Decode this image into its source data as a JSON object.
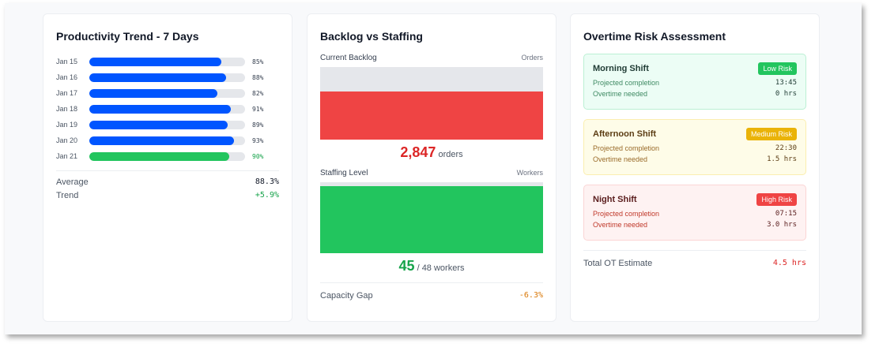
{
  "productivity": {
    "title": "Productivity Trend - 7 Days",
    "rows": [
      {
        "date": "Jan 15",
        "value": 85,
        "label": "85%",
        "color": "#0055ff"
      },
      {
        "date": "Jan 16",
        "value": 88,
        "label": "88%",
        "color": "#0055ff"
      },
      {
        "date": "Jan 17",
        "value": 82,
        "label": "82%",
        "color": "#0055ff"
      },
      {
        "date": "Jan 18",
        "value": 91,
        "label": "91%",
        "color": "#0055ff"
      },
      {
        "date": "Jan 19",
        "value": 89,
        "label": "89%",
        "color": "#0055ff"
      },
      {
        "date": "Jan 20",
        "value": 93,
        "label": "93%",
        "color": "#0055ff"
      },
      {
        "date": "Jan 21",
        "value": 90,
        "label": "90%",
        "color": "#22c55e"
      }
    ],
    "average_label": "Average",
    "average": "88.3%",
    "trend_label": "Trend",
    "trend": "+5.9%"
  },
  "backlog": {
    "title": "Backlog vs Staffing",
    "current_label": "Current Backlog",
    "current_unit": "Orders",
    "backlog_fill_percent": 66,
    "backlog_value": "2,847",
    "backlog_suffix": "orders",
    "staffing_label": "Staffing Level",
    "staffing_unit": "Workers",
    "staffing_fill_percent": 94,
    "staffing_value": "45",
    "staffing_suffix": "/ 48 workers",
    "gap_label": "Capacity Gap",
    "gap_value": "-6.3%"
  },
  "overtime": {
    "title": "Overtime Risk Assessment",
    "shifts": [
      {
        "name": "Morning Shift",
        "badge": "Low Risk",
        "completion_label": "Projected completion",
        "completion": "13:45",
        "ot_label": "Overtime needed",
        "ot": "0 hrs"
      },
      {
        "name": "Afternoon Shift",
        "badge": "Medium Risk",
        "completion_label": "Projected completion",
        "completion": "22:30",
        "ot_label": "Overtime needed",
        "ot": "1.5 hrs"
      },
      {
        "name": "Night Shift",
        "badge": "High Risk",
        "completion_label": "Projected completion",
        "completion": "07:15",
        "ot_label": "Overtime needed",
        "ot": "3.0 hrs"
      }
    ],
    "total_label": "Total OT Estimate",
    "total": "4.5 hrs"
  }
}
